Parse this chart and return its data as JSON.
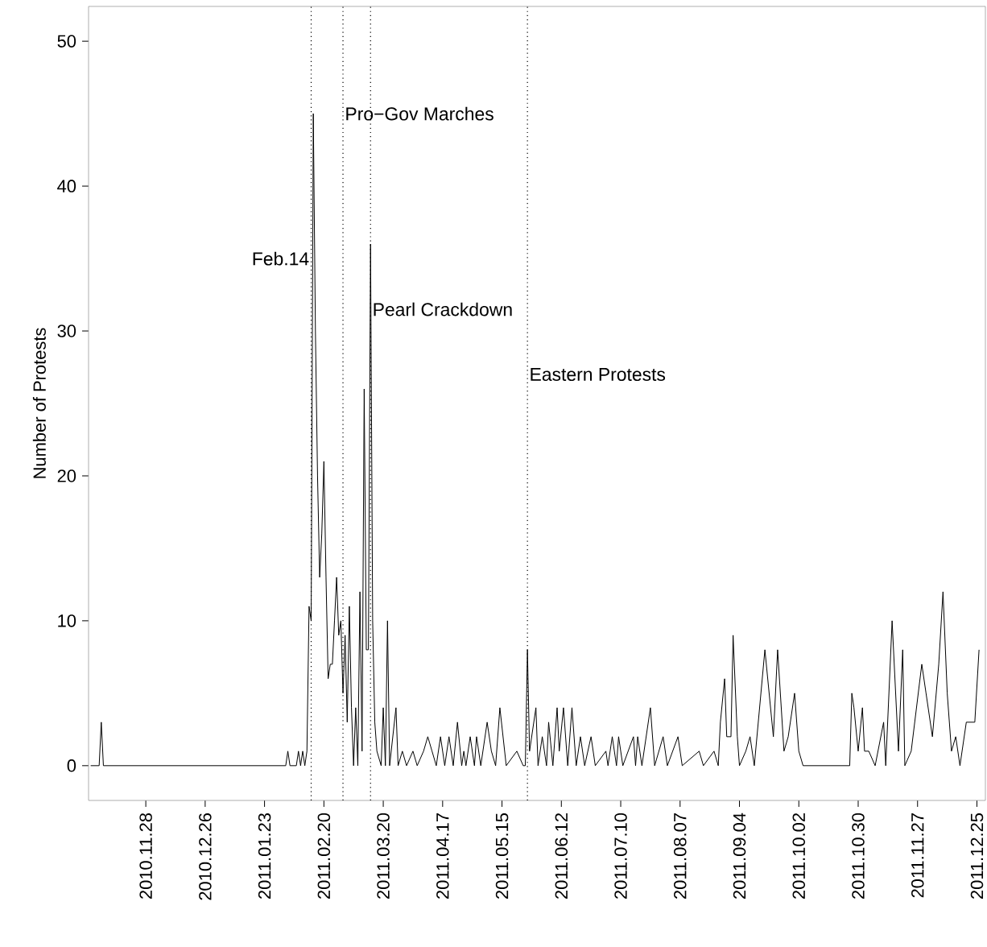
{
  "chart_data": {
    "type": "line",
    "ylabel": "Number of Protests",
    "xlim": [
      "2010-11-01",
      "2011-12-29"
    ],
    "ylim": [
      -2.4,
      52.4
    ],
    "yticks": [
      0,
      10,
      20,
      30,
      40,
      50
    ],
    "xticks": [
      {
        "value": "2010-11-28",
        "label": "2010.11.28"
      },
      {
        "value": "2010-12-26",
        "label": "2010.12.26"
      },
      {
        "value": "2011-01-23",
        "label": "2011.01.23"
      },
      {
        "value": "2011-02-20",
        "label": "2011.02.20"
      },
      {
        "value": "2011-03-20",
        "label": "2011.03.20"
      },
      {
        "value": "2011-04-17",
        "label": "2011.04.17"
      },
      {
        "value": "2011-05-15",
        "label": "2011.05.15"
      },
      {
        "value": "2011-06-12",
        "label": "2011.06.12"
      },
      {
        "value": "2011-07-10",
        "label": "2011.07.10"
      },
      {
        "value": "2011-08-07",
        "label": "2011.08.07"
      },
      {
        "value": "2011-09-04",
        "label": "2011.09.04"
      },
      {
        "value": "2011-10-02",
        "label": "2011.10.02"
      },
      {
        "value": "2011-10-30",
        "label": "2011.10.30"
      },
      {
        "value": "2011-11-27",
        "label": "2011.11.27"
      },
      {
        "value": "2011-12-25",
        "label": "2011.12.25"
      }
    ],
    "grid": false,
    "marker": "none",
    "line_style": "solid",
    "series": [
      {
        "color": "#000000",
        "x": [
          "2010-11-02",
          "2010-11-06",
          "2010-11-07",
          "2010-11-08",
          "2011-02-02",
          "2011-02-03",
          "2011-02-04",
          "2011-02-07",
          "2011-02-08",
          "2011-02-09",
          "2011-02-10",
          "2011-02-11",
          "2011-02-12",
          "2011-02-13",
          "2011-02-14",
          "2011-02-15",
          "2011-02-16",
          "2011-02-17",
          "2011-02-18",
          "2011-02-19",
          "2011-02-20",
          "2011-02-21",
          "2011-02-22",
          "2011-02-23",
          "2011-02-24",
          "2011-02-25",
          "2011-02-26",
          "2011-02-27",
          "2011-02-28",
          "2011-03-01",
          "2011-03-02",
          "2011-03-03",
          "2011-03-04",
          "2011-03-05",
          "2011-03-06",
          "2011-03-07",
          "2011-03-08",
          "2011-03-09",
          "2011-03-10",
          "2011-03-11",
          "2011-03-12",
          "2011-03-13",
          "2011-03-14",
          "2011-03-15",
          "2011-03-16",
          "2011-03-17",
          "2011-03-19",
          "2011-03-20",
          "2011-03-21",
          "2011-03-22",
          "2011-03-23",
          "2011-03-26",
          "2011-03-27",
          "2011-03-29",
          "2011-03-31",
          "2011-04-03",
          "2011-04-05",
          "2011-04-08",
          "2011-04-10",
          "2011-04-12",
          "2011-04-14",
          "2011-04-16",
          "2011-04-18",
          "2011-04-20",
          "2011-04-22",
          "2011-04-24",
          "2011-04-26",
          "2011-04-27",
          "2011-04-28",
          "2011-04-30",
          "2011-05-02",
          "2011-05-03",
          "2011-05-05",
          "2011-05-08",
          "2011-05-10",
          "2011-05-12",
          "2011-05-14",
          "2011-05-17",
          "2011-05-22",
          "2011-05-25",
          "2011-05-26",
          "2011-05-27",
          "2011-05-28",
          "2011-05-31",
          "2011-06-01",
          "2011-06-03",
          "2011-06-05",
          "2011-06-06",
          "2011-06-08",
          "2011-06-10",
          "2011-06-11",
          "2011-06-13",
          "2011-06-15",
          "2011-06-17",
          "2011-06-19",
          "2011-06-21",
          "2011-06-23",
          "2011-06-26",
          "2011-06-28",
          "2011-07-03",
          "2011-07-04",
          "2011-07-06",
          "2011-07-08",
          "2011-07-09",
          "2011-07-11",
          "2011-07-16",
          "2011-07-17",
          "2011-07-18",
          "2011-07-20",
          "2011-07-24",
          "2011-07-26",
          "2011-07-30",
          "2011-08-01",
          "2011-08-06",
          "2011-08-08",
          "2011-08-16",
          "2011-08-18",
          "2011-08-23",
          "2011-08-25",
          "2011-08-26",
          "2011-08-28",
          "2011-08-29",
          "2011-08-31",
          "2011-09-01",
          "2011-09-03",
          "2011-09-04",
          "2011-09-07",
          "2011-09-09",
          "2011-09-11",
          "2011-09-16",
          "2011-09-18",
          "2011-09-20",
          "2011-09-22",
          "2011-09-25",
          "2011-09-27",
          "2011-09-30",
          "2011-10-02",
          "2011-10-04",
          "2011-10-26",
          "2011-10-27",
          "2011-10-28",
          "2011-10-30",
          "2011-11-01",
          "2011-11-02",
          "2011-11-04",
          "2011-11-07",
          "2011-11-11",
          "2011-11-12",
          "2011-11-15",
          "2011-11-18",
          "2011-11-20",
          "2011-11-21",
          "2011-11-24",
          "2011-11-29",
          "2011-12-01",
          "2011-12-04",
          "2011-12-07",
          "2011-12-09",
          "2011-12-11",
          "2011-12-13",
          "2011-12-15",
          "2011-12-17",
          "2011-12-20",
          "2011-12-22",
          "2011-12-24",
          "2011-12-26"
        ],
        "values": [
          0,
          0,
          3,
          0,
          0,
          1,
          0,
          0,
          1,
          0,
          1,
          0,
          1,
          11,
          10,
          45,
          30,
          20,
          13,
          16,
          21,
          13,
          6,
          7,
          7,
          10,
          13,
          9,
          10,
          5,
          9,
          3,
          11,
          4,
          0,
          4,
          0,
          12,
          1,
          26,
          8,
          8,
          36,
          10,
          3,
          1,
          0,
          4,
          0,
          10,
          0,
          4,
          0,
          1,
          0,
          1,
          0,
          1,
          2,
          1,
          0,
          2,
          0,
          2,
          0,
          3,
          0,
          1,
          0,
          2,
          0,
          2,
          0,
          3,
          1,
          0,
          4,
          0,
          1,
          0,
          0,
          8,
          1,
          4,
          0,
          2,
          0,
          3,
          0,
          4,
          1,
          4,
          0,
          4,
          0,
          2,
          0,
          2,
          0,
          1,
          0,
          2,
          0,
          2,
          0,
          2,
          0,
          2,
          0,
          4,
          0,
          2,
          0,
          2,
          0,
          1,
          0,
          1,
          0,
          3,
          6,
          2,
          2,
          9,
          2,
          0,
          1,
          2,
          0,
          8,
          5,
          2,
          8,
          1,
          2,
          5,
          1,
          0,
          0,
          5,
          4,
          1,
          4,
          1,
          1,
          0,
          3,
          0,
          10,
          1,
          8,
          0,
          1,
          7,
          5,
          2,
          7,
          12,
          5,
          1,
          2,
          0,
          3,
          3,
          3,
          8
        ]
      }
    ],
    "ref_lines": [
      {
        "axis": "x",
        "value": "2011-02-14",
        "line_style": "dotted",
        "color": "#000000"
      },
      {
        "axis": "x",
        "value": "2011-03-01",
        "line_style": "dotted",
        "color": "#000000"
      },
      {
        "axis": "x",
        "value": "2011-03-14",
        "line_style": "dotted",
        "color": "#000000"
      },
      {
        "axis": "x",
        "value": "2011-05-27",
        "line_style": "dotted",
        "color": "#000000"
      }
    ],
    "annotations": [
      {
        "text": "Feb.14",
        "x": "2011-02-14",
        "y": 35
      },
      {
        "text": "Pro−Gov Marches",
        "x": "2011-03-01",
        "y": 45
      },
      {
        "text": "Pearl Crackdown",
        "x": "2011-03-14",
        "y": 31.5
      },
      {
        "text": "Eastern Protests",
        "x": "2011-05-27",
        "y": 27
      }
    ]
  }
}
